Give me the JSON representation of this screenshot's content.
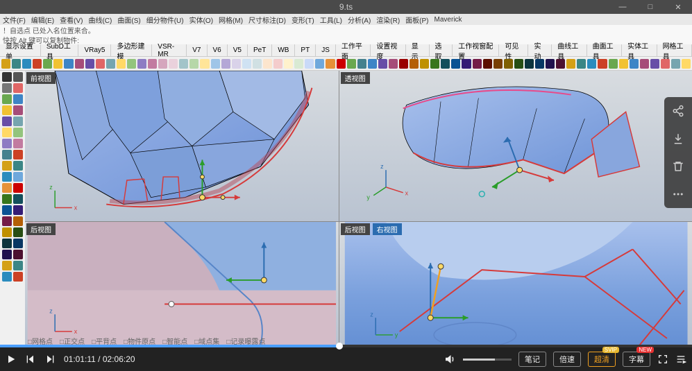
{
  "window": {
    "title": "9.ts",
    "minimize": "—",
    "maximize": "□",
    "close": "✕"
  },
  "menu": {
    "items": [
      "文件(F)",
      "编辑(E)",
      "查看(V)",
      "曲线(C)",
      "曲面(S)",
      "细分物件(U)",
      "实体(O)",
      "网格(M)",
      "尺寸标注(D)",
      "变形(T)",
      "工具(L)",
      "分析(A)",
      "渲染(R)",
      "面板(P)",
      "Maverick"
    ]
  },
  "hint": {
    "line1": "！自选点 已处入名位置来合。",
    "line2_prefix": "快按 Alt 键可以复制物件:"
  },
  "tabs": {
    "items": [
      "显示设置单",
      "SubD工具",
      "VRay5",
      "多边形建模",
      "VSR-MR",
      "V7",
      "V6",
      "V5",
      "PeT",
      "WB",
      "PT",
      "JS",
      "工作平面",
      "设置视度",
      "显示",
      "选取",
      "工作视窗配置",
      "可见性",
      "实动",
      "曲线工具",
      "曲面工具",
      "实体工具",
      "网格工具"
    ]
  },
  "toolbar": {
    "colors": [
      "#d4a017",
      "#3b8686",
      "#2b8cbe",
      "#cc4125",
      "#6aa84f",
      "#f1c232",
      "#3d85c6",
      "#a64d79",
      "#674ea7",
      "#e06666",
      "#76a5af",
      "#ffd966",
      "#93c47d",
      "#8e7cc3",
      "#c27ba0",
      "#d5a6bd",
      "#ead1dc",
      "#a2c4c9",
      "#b6d7a8",
      "#ffe599",
      "#9fc5e8",
      "#b4a7d6",
      "#d9d2e9",
      "#cfe2f3",
      "#d0e0e3",
      "#fce5cd",
      "#f4cccc",
      "#fff2cc",
      "#d9ead3",
      "#c9daf8",
      "#6fa8dc",
      "#e69138",
      "#cc0000",
      "#6aa84f",
      "#45818e",
      "#3d85c6",
      "#674ea7",
      "#a64d79",
      "#990000",
      "#b45f06",
      "#bf9000",
      "#38761d",
      "#134f5c",
      "#0b5394",
      "#351c75",
      "#741b47",
      "#5b0f00",
      "#783f04",
      "#7f6000",
      "#274e13",
      "#0c343d",
      "#073763",
      "#20124d",
      "#4c1130",
      "#d4a017",
      "#3b8686",
      "#2b8cbe",
      "#cc4125",
      "#6aa84f",
      "#f1c232",
      "#3d85c6",
      "#a64d79",
      "#674ea7",
      "#e06666",
      "#76a5af",
      "#ffd966"
    ]
  },
  "leftbox": {
    "colors": [
      "#333",
      "#555",
      "#777",
      "#e06666",
      "#6aa84f",
      "#3d85c6",
      "#f1c232",
      "#a64d79",
      "#674ea7",
      "#76a5af",
      "#ffd966",
      "#93c47d",
      "#8e7cc3",
      "#c27ba0",
      "#45818e",
      "#cc4125",
      "#d4a017",
      "#3b8686",
      "#2b8cbe",
      "#6fa8dc",
      "#e69138",
      "#cc0000",
      "#38761d",
      "#134f5c",
      "#0b5394",
      "#351c75",
      "#741b47",
      "#b45f06",
      "#bf9000",
      "#274e13",
      "#0c343d",
      "#073763",
      "#20124d",
      "#4c1130",
      "#d4a017",
      "#3b8686",
      "#2b8cbe",
      "#cc4125"
    ]
  },
  "viewports": {
    "tl": {
      "label": "前视图"
    },
    "tr": {
      "label": "透视图"
    },
    "bl": {
      "label": "后视图"
    },
    "br": {
      "label": "右视图"
    }
  },
  "status": {
    "items": [
      "网格点",
      "正交点",
      "平背点",
      "物件原点",
      "智能点",
      "域点集",
      "记录曝露点"
    ]
  },
  "player": {
    "current": "01:01:11",
    "total": "02:06:20",
    "progress_pct": 49,
    "volume_pct": 65,
    "buttons": {
      "notes": "笔记",
      "speed": "倍速",
      "quality": "超清",
      "subtitle": "字幕"
    },
    "badges": {
      "svip": "SVIP",
      "new": "NEW"
    },
    "colors": {
      "quality_border": "#f0a020",
      "quality_text": "#f0a020",
      "progress_fill": "#4a9eff"
    }
  }
}
